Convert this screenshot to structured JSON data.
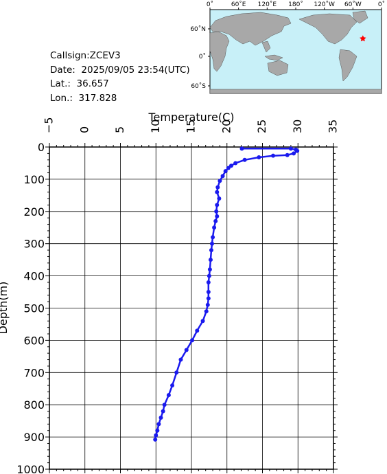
{
  "info": {
    "callsign": "Callsign:ZCEV3",
    "date": "Date:  2025/09/05 23:54(UTC)",
    "lat": "Lat.:  36.657",
    "lon": "Lon.:  317.828"
  },
  "map": {
    "top_labels": [
      "0˚",
      "60˚E",
      "120˚E",
      "180˚",
      "120˚W",
      "60˚W",
      "0˚"
    ],
    "left_labels": [
      "60˚N",
      "0˚",
      "60˚S"
    ],
    "ocean_color": "#c8f0f8",
    "land_color": "#a8a8a8",
    "marker_color": "#ff0000",
    "marker": {
      "lon": 317.828,
      "lat": 36.657
    }
  },
  "chart_data": {
    "type": "line",
    "xlabel": "Temperature(C)",
    "ylabel": "Depth(m)",
    "xlim": [
      -5,
      35
    ],
    "ylim": [
      0,
      1000
    ],
    "y_inverted": true,
    "x_ticks": [
      -5,
      0,
      5,
      10,
      15,
      20,
      25,
      30,
      35
    ],
    "y_ticks": [
      0,
      100,
      200,
      300,
      400,
      500,
      600,
      700,
      800,
      900,
      1000
    ],
    "x_tick_labels": [
      "−5",
      "0",
      "5",
      "10",
      "15",
      "20",
      "25",
      "30",
      "35"
    ],
    "y_tick_labels": [
      "0",
      "100",
      "200",
      "300",
      "400",
      "500",
      "600",
      "700",
      "800",
      "900",
      "1000"
    ],
    "grid": true,
    "series_color": "#1a1aee",
    "series": [
      {
        "x": [
          22.1,
          29.0,
          29.7,
          29.9,
          29.4,
          28.5,
          26.5,
          24.5,
          22.5,
          21.2,
          20.6,
          20.2,
          19.8,
          19.4,
          19.0,
          18.7,
          18.6,
          18.9,
          18.6,
          18.5,
          18.6,
          18.4,
          18.2,
          18.0,
          17.9,
          17.8,
          17.7,
          17.6,
          17.5,
          17.4,
          17.4,
          17.4,
          17.3,
          17.1,
          16.6,
          15.8,
          15.1,
          14.3,
          13.5,
          12.9,
          12.3,
          11.8,
          11.2,
          11.0,
          10.7,
          10.4,
          10.2,
          10.0,
          9.9
        ],
        "y": [
          5,
          5,
          8,
          12,
          20,
          25,
          27,
          32,
          40,
          50,
          58,
          65,
          75,
          90,
          105,
          125,
          140,
          160,
          180,
          200,
          215,
          230,
          250,
          280,
          300,
          320,
          350,
          380,
          400,
          420,
          450,
          470,
          490,
          510,
          540,
          570,
          600,
          630,
          660,
          700,
          740,
          770,
          800,
          820,
          840,
          860,
          880,
          895,
          908
        ]
      }
    ]
  }
}
